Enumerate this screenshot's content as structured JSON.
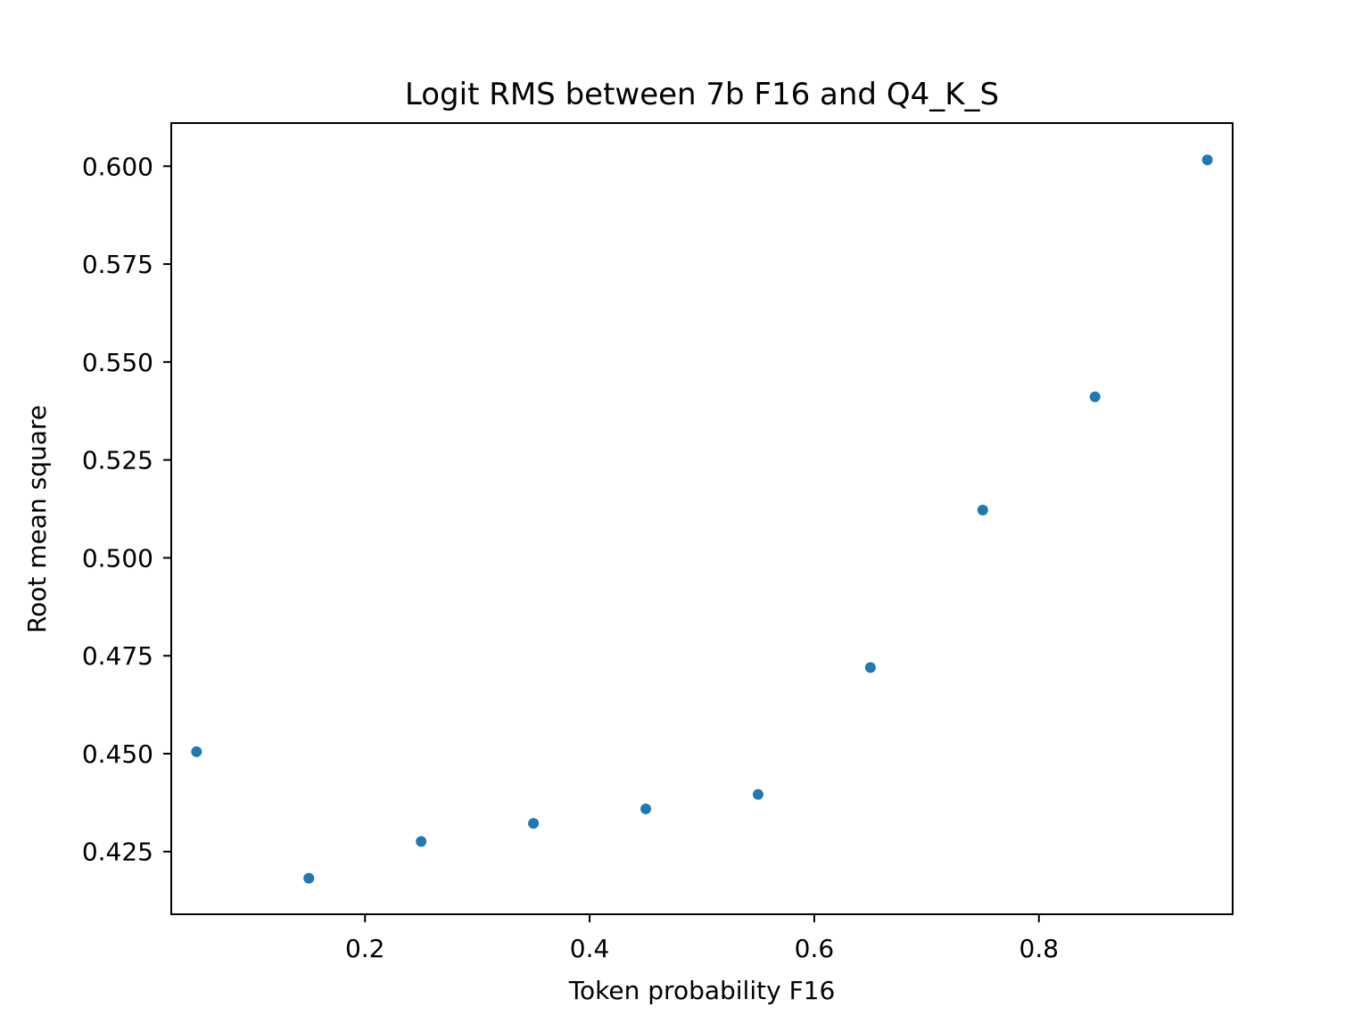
{
  "chart_data": {
    "type": "scatter",
    "title": "Logit RMS between 7b F16 and Q4_K_S",
    "xlabel": "Token probability F16",
    "ylabel": "Root mean square",
    "xlim": [
      0.0275,
      0.9725
    ],
    "ylim": [
      0.409,
      0.611
    ],
    "xticks": [
      0.2,
      0.4,
      0.6,
      0.8
    ],
    "xtick_labels": [
      "0.2",
      "0.4",
      "0.6",
      "0.8"
    ],
    "yticks": [
      0.425,
      0.45,
      0.475,
      0.5,
      0.525,
      0.55,
      0.575,
      0.6
    ],
    "ytick_labels": [
      "0.425",
      "0.450",
      "0.475",
      "0.500",
      "0.525",
      "0.550",
      "0.575",
      "0.600"
    ],
    "grid": false,
    "marker_color": "#1f77b4",
    "series": [
      {
        "x": [
          0.05,
          0.15,
          0.25,
          0.35,
          0.45,
          0.55,
          0.65,
          0.75,
          0.85,
          0.95
        ],
        "y": [
          0.4505,
          0.4182,
          0.4276,
          0.4322,
          0.4359,
          0.4396,
          0.472,
          0.5122,
          0.5411,
          0.6016
        ]
      }
    ]
  }
}
